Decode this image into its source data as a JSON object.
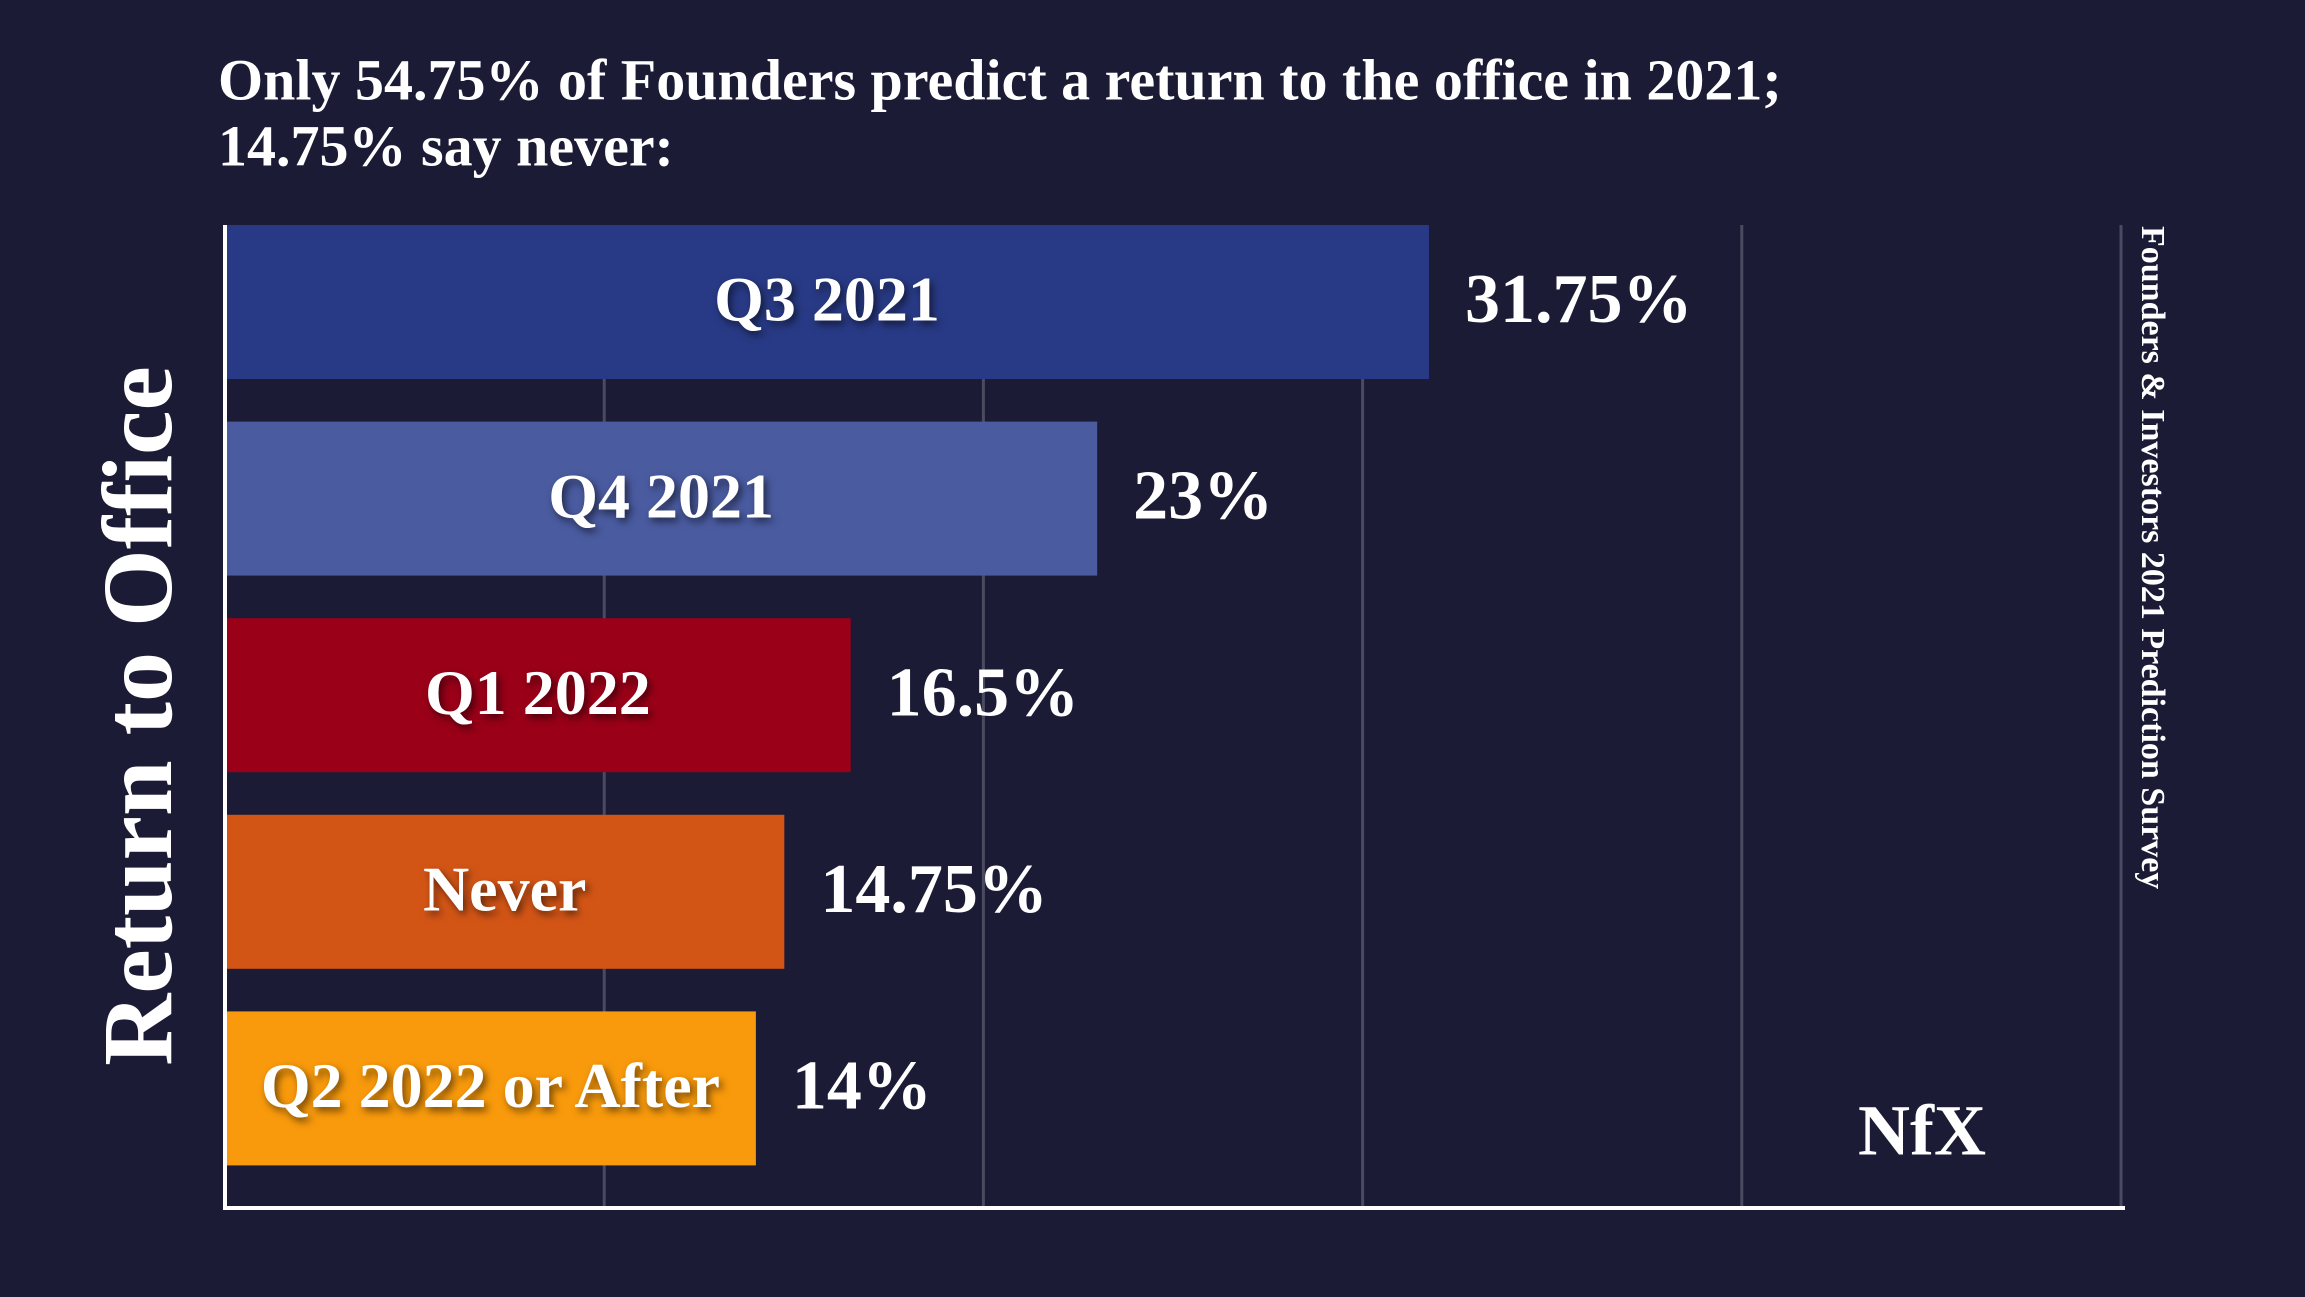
{
  "chart_data": {
    "type": "bar",
    "orientation": "horizontal",
    "title": [
      "Only 54.75% of Founders predict a return to the office in 2021;",
      "14.75% say never:"
    ],
    "y_label": "Return to Office",
    "source": "Founders & Investors 2021 Prediction Survey",
    "logo": "NfX",
    "categories": [
      "Q3 2021",
      "Q4 2021",
      "Q1 2022",
      "Never",
      "Q2 2022 or After"
    ],
    "values": [
      31.75,
      23,
      16.5,
      14.75,
      14
    ],
    "value_labels": [
      "31.75%",
      "23%",
      "16.5%",
      "14.75%",
      "14%"
    ],
    "colors": [
      "#283a85",
      "#4a5ba0",
      "#9a0018",
      "#d35516",
      "#f99a0c"
    ],
    "xlim": [
      0,
      50
    ],
    "xticks": [
      10,
      20,
      30,
      40,
      50
    ],
    "grid": true
  }
}
